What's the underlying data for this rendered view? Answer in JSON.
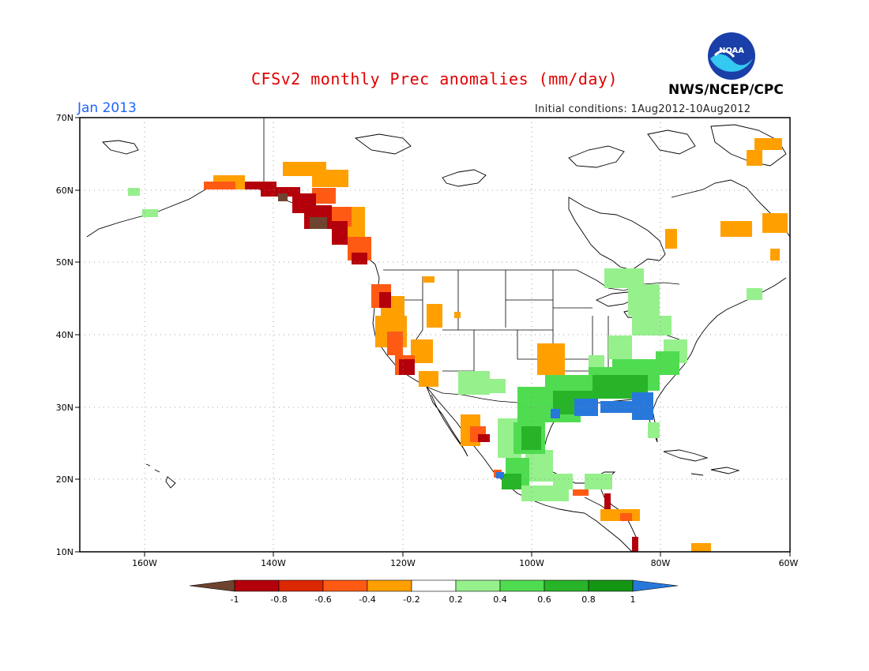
{
  "header": {
    "title": "CFSv2 monthly Prec anomalies (mm/day)",
    "period": "Jan 2013",
    "initial_conditions": "Initial conditions: 1Aug2012-10Aug2012",
    "agency": "NWS/NCEP/CPC",
    "logo_text": "NOAA"
  },
  "map": {
    "lon_range": [
      -172,
      -60
    ],
    "lat_range": [
      10,
      70
    ],
    "lon_ticks": [
      "160W",
      "140W",
      "120W",
      "100W",
      "80W",
      "60W"
    ],
    "lat_ticks": [
      "10N",
      "20N",
      "30N",
      "40N",
      "50N",
      "60N",
      "70N"
    ],
    "gridlines": true
  },
  "colorbar": {
    "levels": [
      "-1",
      "-0.8",
      "-0.6",
      "-0.4",
      "-0.2",
      "0.2",
      "0.4",
      "0.6",
      "0.8",
      "1"
    ],
    "colors": [
      "#6e4430",
      "#b4000a",
      "#dc2800",
      "#ff5a14",
      "#ffa000",
      "#ffffff",
      "#96f08c",
      "#50dc50",
      "#28b428",
      "#149614",
      "#2878dc"
    ]
  },
  "colors": {
    "title": "#e00000",
    "period": "#1e64ff",
    "dry_strong": "#b4000a",
    "dry": "#ffa000",
    "wet": "#50dc50",
    "wet_strong": "#2878dc"
  }
}
